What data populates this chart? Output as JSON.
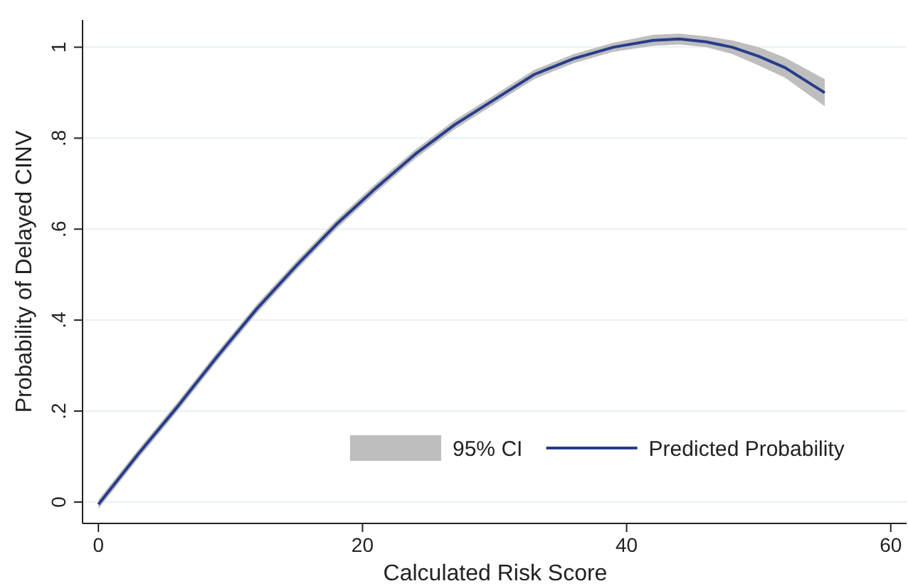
{
  "chart_data": {
    "type": "line",
    "xlabel": "Calculated Risk Score",
    "ylabel": "Probability of Delayed CINV",
    "xlim": [
      -1.2,
      61.2
    ],
    "ylim": [
      -0.047,
      1.06
    ],
    "xticks": [
      0,
      20,
      40,
      60
    ],
    "yticks": [
      {
        "value": 0,
        "label": "0"
      },
      {
        "value": 0.2,
        "label": ".2"
      },
      {
        "value": 0.4,
        "label": ".4"
      },
      {
        "value": 0.6,
        "label": ".6"
      },
      {
        "value": 0.8,
        "label": ".8"
      },
      {
        "value": 1,
        "label": "1"
      }
    ],
    "grid": "y",
    "legend": "bottom right",
    "annotations": [
      "95% CI"
    ],
    "x": [
      0,
      3,
      6,
      9,
      12,
      15,
      18,
      21,
      24,
      27,
      30,
      33,
      36,
      39,
      42,
      44,
      46,
      48,
      50,
      52,
      55
    ],
    "series": [
      {
        "name": "Predicted Probability",
        "color": "#283c8c",
        "values": [
          -0.005,
          0.105,
          0.21,
          0.32,
          0.425,
          0.52,
          0.61,
          0.69,
          0.765,
          0.83,
          0.885,
          0.94,
          0.975,
          1.0,
          1.015,
          1.018,
          1.012,
          1.0,
          0.98,
          0.955,
          0.9
        ],
        "lower": [
          -0.015,
          0.095,
          0.2,
          0.31,
          0.415,
          0.51,
          0.6,
          0.68,
          0.755,
          0.82,
          0.875,
          0.93,
          0.965,
          0.99,
          1.003,
          1.006,
          1.0,
          0.985,
          0.96,
          0.933,
          0.87
        ],
        "upper": [
          0.005,
          0.115,
          0.22,
          0.33,
          0.435,
          0.53,
          0.62,
          0.7,
          0.775,
          0.84,
          0.895,
          0.95,
          0.985,
          1.01,
          1.027,
          1.03,
          1.024,
          1.015,
          1.0,
          0.977,
          0.93
        ]
      }
    ]
  }
}
